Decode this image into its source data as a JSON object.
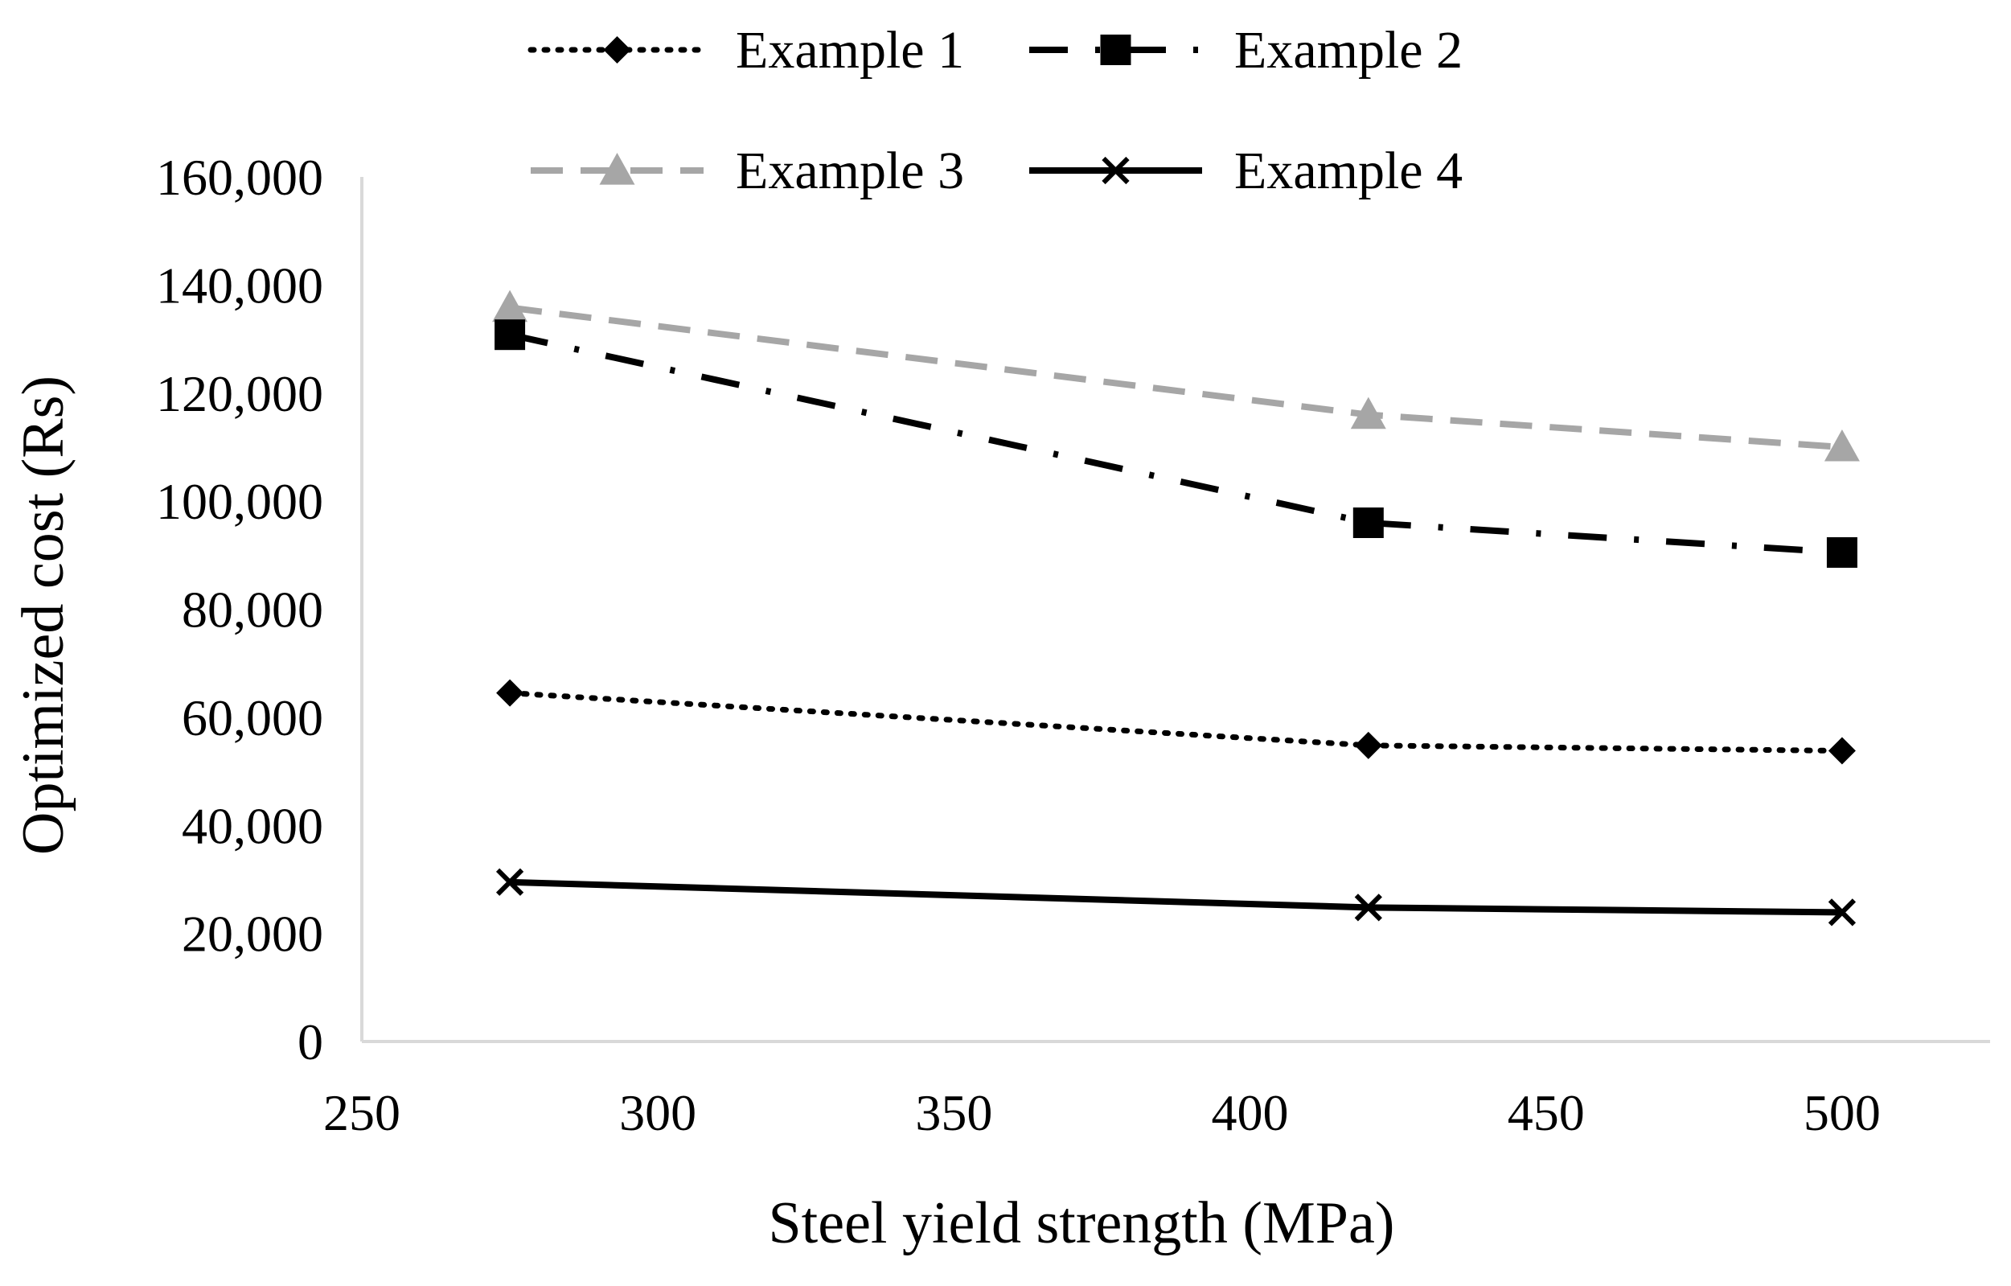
{
  "chart_data": {
    "type": "line",
    "title": "",
    "xlabel": "Steel yield strength (MPa)",
    "ylabel": "Optimized cost (Rs)",
    "xlim": [
      250,
      525
    ],
    "ylim": [
      0,
      160000
    ],
    "x_ticks": [
      250,
      300,
      350,
      400,
      450,
      500
    ],
    "x_tick_labels": [
      "250",
      "300",
      "350",
      "400",
      "450",
      "500"
    ],
    "y_ticks": [
      0,
      20000,
      40000,
      60000,
      80000,
      100000,
      120000,
      140000,
      160000
    ],
    "y_tick_labels": [
      "0",
      "20,000",
      "40,000",
      "60,000",
      "80,000",
      "100,000",
      "120,000",
      "140,000",
      "160,000"
    ],
    "grid": false,
    "legend_position": "top",
    "x": [
      275,
      420,
      500
    ],
    "series": [
      {
        "name": "Example 1",
        "values": [
          64500,
          54800,
          53800
        ],
        "color": "#000000",
        "line_style": "dotted",
        "marker": "diamond"
      },
      {
        "name": "Example 2",
        "values": [
          130800,
          96000,
          90500
        ],
        "color": "#000000",
        "line_style": "dash-dot",
        "marker": "square"
      },
      {
        "name": "Example 3",
        "values": [
          135800,
          116000,
          110000
        ],
        "color": "#a6a6a6",
        "line_style": "dashed",
        "marker": "triangle"
      },
      {
        "name": "Example 4",
        "values": [
          29500,
          24800,
          23900
        ],
        "color": "#000000",
        "line_style": "solid",
        "marker": "x"
      }
    ]
  }
}
